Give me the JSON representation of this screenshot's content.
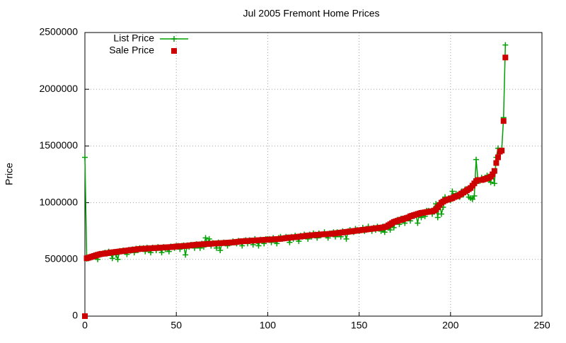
{
  "chart_data": {
    "type": "line",
    "title": "Jul 2005 Fremont Home Prices",
    "y_label": "Price",
    "xlim": [
      0,
      250
    ],
    "xticks": [
      0,
      50,
      100,
      150,
      200,
      250
    ],
    "ylim": [
      0,
      2500000
    ],
    "yticks": [
      0,
      500000,
      1000000,
      1500000,
      2000000,
      2500000
    ],
    "grid": true,
    "legend": "top-left",
    "x": [
      0,
      1,
      2,
      3,
      4,
      5,
      6,
      7,
      8,
      9,
      10,
      11,
      12,
      13,
      14,
      15,
      16,
      17,
      18,
      19,
      20,
      21,
      22,
      23,
      24,
      25,
      26,
      27,
      28,
      29,
      30,
      31,
      32,
      33,
      34,
      35,
      36,
      37,
      38,
      39,
      40,
      41,
      42,
      43,
      44,
      45,
      46,
      47,
      48,
      49,
      50,
      51,
      52,
      53,
      54,
      55,
      56,
      57,
      58,
      59,
      60,
      61,
      62,
      63,
      64,
      65,
      66,
      67,
      68,
      69,
      70,
      71,
      72,
      73,
      74,
      75,
      76,
      77,
      78,
      79,
      80,
      81,
      82,
      83,
      84,
      85,
      86,
      87,
      88,
      89,
      90,
      91,
      92,
      93,
      94,
      95,
      96,
      97,
      98,
      99,
      100,
      101,
      102,
      103,
      104,
      105,
      106,
      107,
      108,
      109,
      110,
      111,
      112,
      113,
      114,
      115,
      116,
      117,
      118,
      119,
      120,
      121,
      122,
      123,
      124,
      125,
      126,
      127,
      128,
      129,
      130,
      131,
      132,
      133,
      134,
      135,
      136,
      137,
      138,
      139,
      140,
      141,
      142,
      143,
      144,
      145,
      146,
      147,
      148,
      149,
      150,
      151,
      152,
      153,
      154,
      155,
      156,
      157,
      158,
      159,
      160,
      161,
      162,
      163,
      164,
      165,
      166,
      167,
      168,
      169,
      170,
      171,
      172,
      173,
      174,
      175,
      176,
      177,
      178,
      179,
      180,
      181,
      182,
      183,
      184,
      185,
      186,
      187,
      188,
      189,
      190,
      191,
      192,
      193,
      194,
      195,
      196,
      197,
      198,
      199,
      200,
      201,
      202,
      203,
      204,
      205,
      206,
      207,
      208,
      209,
      210,
      211,
      212,
      213,
      214,
      215,
      216,
      217,
      218,
      219,
      220,
      221,
      222,
      223,
      224,
      225,
      226,
      227,
      228,
      229,
      230
    ],
    "series": [
      {
        "name": "List Price",
        "color": "#00a000",
        "marker": "plus",
        "line": true,
        "values": [
          1400000,
          505000,
          510000,
          515000,
          520000,
          535000,
          540000,
          500000,
          550000,
          545000,
          555000,
          560000,
          550000,
          570000,
          555000,
          510000,
          565000,
          540000,
          500000,
          575000,
          570000,
          580000,
          570000,
          545000,
          585000,
          575000,
          590000,
          560000,
          595000,
          580000,
          600000,
          595000,
          600000,
          570000,
          605000,
          590000,
          560000,
          605000,
          600000,
          580000,
          610000,
          600000,
          560000,
          610000,
          590000,
          600000,
          570000,
          615000,
          610000,
          600000,
          620000,
          620000,
          590000,
          620000,
          625000,
          540000,
          625000,
          610000,
          630000,
          620000,
          600000,
          635000,
          630000,
          600000,
          640000,
          610000,
          690000,
          640000,
          680000,
          620000,
          645000,
          640000,
          600000,
          650000,
          580000,
          645000,
          650000,
          640000,
          620000,
          650000,
          645000,
          660000,
          650000,
          640000,
          665000,
          660000,
          620000,
          665000,
          670000,
          640000,
          670000,
          665000,
          630000,
          680000,
          660000,
          620000,
          675000,
          670000,
          640000,
          680000,
          680000,
          680000,
          650000,
          690000,
          670000,
          640000,
          690000,
          700000,
          680000,
          690000,
          700000,
          695000,
          650000,
          700000,
          680000,
          710000,
          700000,
          660000,
          710000,
          700000,
          720000,
          710000,
          680000,
          720000,
          700000,
          730000,
          720000,
          690000,
          730000,
          710000,
          720000,
          740000,
          720000,
          690000,
          730000,
          730000,
          740000,
          700000,
          740000,
          730000,
          700000,
          750000,
          740000,
          680000,
          750000,
          760000,
          750000,
          740000,
          770000,
          760000,
          750000,
          760000,
          780000,
          750000,
          760000,
          790000,
          770000,
          750000,
          780000,
          760000,
          790000,
          770000,
          750000,
          790000,
          740000,
          800000,
          790000,
          760000,
          820000,
          780000,
          840000,
          850000,
          810000,
          860000,
          850000,
          820000,
          870000,
          880000,
          840000,
          890000,
          880000,
          900000,
          820000,
          910000,
          870000,
          900000,
          880000,
          930000,
          930000,
          920000,
          900000,
          950000,
          990000,
          870000,
          1000000,
          900000,
          960000,
          1050000,
          1030000,
          1040000,
          1020000,
          1100000,
          1050000,
          1080000,
          1060000,
          1050000,
          1100000,
          1070000,
          1120000,
          1100000,
          1050000,
          1040000,
          1030000,
          1060000,
          1380000,
          1200000,
          1190000,
          1220000,
          1200000,
          1220000,
          1240000,
          1200000,
          1180000,
          1270000,
          1170000,
          1400000,
          1480000,
          1450000,
          1460000,
          1750000,
          2390000
        ]
      },
      {
        "name": "Sale Price",
        "color": "#cc0000",
        "marker": "square",
        "line": false,
        "values": [
          0,
          510000,
          515000,
          520000,
          525000,
          530000,
          535000,
          540000,
          545000,
          548000,
          550000,
          552000,
          555000,
          557000,
          560000,
          562000,
          564000,
          566000,
          568000,
          570000,
          572000,
          574000,
          576000,
          578000,
          580000,
          582000,
          584000,
          586000,
          588000,
          590000,
          592000,
          593000,
          594000,
          595000,
          596000,
          597000,
          598000,
          599000,
          600000,
          601000,
          602000,
          603000,
          604000,
          605000,
          606000,
          607000,
          608000,
          609000,
          610000,
          612000,
          614000,
          615000,
          616000,
          617000,
          618000,
          619000,
          620000,
          622000,
          624000,
          626000,
          628000,
          630000,
          631000,
          632000,
          633000,
          634000,
          635000,
          636000,
          637000,
          638000,
          639000,
          640000,
          641000,
          642000,
          643000,
          644000,
          645000,
          646000,
          647000,
          648000,
          649000,
          650000,
          652000,
          654000,
          656000,
          658000,
          660000,
          661000,
          662000,
          663000,
          664000,
          665000,
          666000,
          667000,
          668000,
          669000,
          670000,
          671000,
          672000,
          673000,
          674000,
          675000,
          676000,
          677000,
          678000,
          679000,
          680000,
          682000,
          684000,
          686000,
          688000,
          690000,
          692000,
          694000,
          695000,
          696000,
          698000,
          700000,
          702000,
          704000,
          706000,
          708000,
          710000,
          712000,
          713000,
          714000,
          715000,
          716000,
          718000,
          720000,
          721000,
          722000,
          723000,
          724000,
          725000,
          726000,
          728000,
          730000,
          732000,
          734000,
          736000,
          738000,
          740000,
          742000,
          744000,
          746000,
          748000,
          750000,
          752000,
          754000,
          756000,
          758000,
          760000,
          762000,
          764000,
          766000,
          768000,
          770000,
          772000,
          774000,
          776000,
          778000,
          780000,
          782000,
          785000,
          790000,
          800000,
          810000,
          820000,
          830000,
          835000,
          840000,
          845000,
          850000,
          855000,
          860000,
          865000,
          870000,
          880000,
          885000,
          890000,
          895000,
          900000,
          905000,
          910000,
          912000,
          915000,
          918000,
          920000,
          922000,
          925000,
          930000,
          940000,
          960000,
          980000,
          1000000,
          1010000,
          1020000,
          1025000,
          1030000,
          1035000,
          1040000,
          1050000,
          1055000,
          1060000,
          1070000,
          1080000,
          1090000,
          1100000,
          1110000,
          1120000,
          1130000,
          1150000,
          1170000,
          1190000,
          1200000,
          1200000,
          1200000,
          1205000,
          1210000,
          1215000,
          1220000,
          1230000,
          1250000,
          1280000,
          1350000,
          1400000,
          1450000,
          1460000,
          1720000,
          2280000
        ]
      }
    ]
  }
}
